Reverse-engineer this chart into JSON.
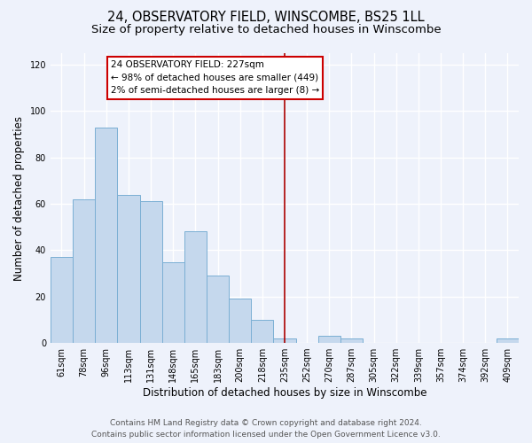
{
  "title": "24, OBSERVATORY FIELD, WINSCOMBE, BS25 1LL",
  "subtitle": "Size of property relative to detached houses in Winscombe",
  "xlabel": "Distribution of detached houses by size in Winscombe",
  "ylabel": "Number of detached properties",
  "bar_labels": [
    "61sqm",
    "78sqm",
    "96sqm",
    "113sqm",
    "131sqm",
    "148sqm",
    "165sqm",
    "183sqm",
    "200sqm",
    "218sqm",
    "235sqm",
    "252sqm",
    "270sqm",
    "287sqm",
    "305sqm",
    "322sqm",
    "339sqm",
    "357sqm",
    "374sqm",
    "392sqm",
    "409sqm"
  ],
  "bar_values": [
    37,
    62,
    93,
    64,
    61,
    35,
    48,
    29,
    19,
    10,
    2,
    0,
    3,
    2,
    0,
    0,
    0,
    0,
    0,
    0,
    2
  ],
  "bar_color": "#c5d8ed",
  "bar_edge_color": "#7bafd4",
  "ylim": [
    0,
    125
  ],
  "yticks": [
    0,
    20,
    40,
    60,
    80,
    100,
    120
  ],
  "annotation_title": "24 OBSERVATORY FIELD: 227sqm",
  "annotation_line1": "← 98% of detached houses are smaller (449)",
  "annotation_line2": "2% of semi-detached houses are larger (8) →",
  "annotation_box_color": "#ffffff",
  "annotation_box_edge_color": "#cc0000",
  "vline_x_index": 10.0,
  "vline_color": "#aa0000",
  "footer_line1": "Contains HM Land Registry data © Crown copyright and database right 2024.",
  "footer_line2": "Contains public sector information licensed under the Open Government Licence v3.0.",
  "background_color": "#eef2fb",
  "grid_color": "#ffffff",
  "title_fontsize": 10.5,
  "subtitle_fontsize": 9.5,
  "axis_label_fontsize": 8.5,
  "tick_fontsize": 7,
  "footer_fontsize": 6.5,
  "ann_fontsize": 7.5
}
